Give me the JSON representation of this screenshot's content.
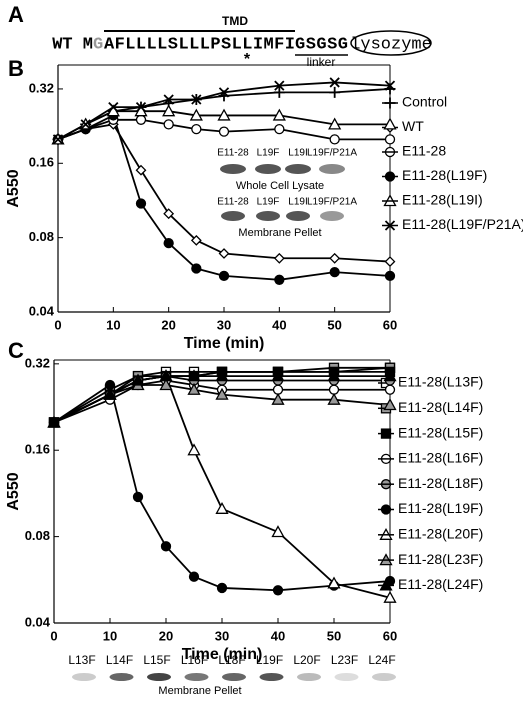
{
  "panel_a": {
    "label": "A",
    "prefix": "WT M",
    "g": "G",
    "tmd_seq": "AFLLLLSLLLPSLLIMFI",
    "linker_seq": "GSGSG",
    "tmd": "TMD",
    "star": "*",
    "linker": "linker",
    "lysozyme": "lysozyme"
  },
  "chart_data": [
    {
      "type": "line",
      "panel_label": "B",
      "xlabel": "Time (min)",
      "ylabel": "A550",
      "log_y": true,
      "x": [
        0,
        5,
        10,
        15,
        20,
        25,
        30,
        40,
        50,
        60
      ],
      "xlim": [
        0,
        60
      ],
      "xticks": [
        0,
        10,
        20,
        30,
        40,
        50,
        60
      ],
      "ylim": [
        0.04,
        0.4
      ],
      "yticks": [
        0.04,
        0.08,
        0.16,
        0.32
      ],
      "series": [
        {
          "name": "Control",
          "color": "#000000",
          "marker": "plus",
          "fill": "none",
          "values": [
            0.2,
            0.23,
            0.26,
            0.27,
            0.28,
            0.29,
            0.3,
            0.31,
            0.31,
            0.32
          ]
        },
        {
          "name": "WT",
          "color": "#000000",
          "marker": "diamond",
          "fill": "#ffffff",
          "values": [
            0.2,
            0.22,
            0.23,
            0.15,
            0.1,
            0.078,
            0.069,
            0.066,
            0.066,
            0.064
          ]
        },
        {
          "name": "E11-28",
          "color": "#000000",
          "marker": "circle",
          "fill": "#ffffff",
          "values": [
            0.2,
            0.22,
            0.24,
            0.24,
            0.23,
            0.22,
            0.215,
            0.22,
            0.2,
            0.2
          ]
        },
        {
          "name": "E11-28(L19F)",
          "color": "#000000",
          "marker": "circle",
          "fill": "#000000",
          "values": [
            0.2,
            0.22,
            0.25,
            0.11,
            0.076,
            0.06,
            0.056,
            0.054,
            0.058,
            0.056
          ]
        },
        {
          "name": "E11-28(L19I)",
          "color": "#000000",
          "marker": "triangle",
          "fill": "#ffffff",
          "values": [
            0.2,
            0.23,
            0.26,
            0.26,
            0.26,
            0.25,
            0.25,
            0.25,
            0.23,
            0.23
          ]
        },
        {
          "name": "E11-28(L19F/P21A)",
          "color": "#000000",
          "marker": "cross",
          "fill": "none",
          "values": [
            0.2,
            0.23,
            0.27,
            0.27,
            0.29,
            0.29,
            0.31,
            0.33,
            0.34,
            0.33
          ]
        }
      ],
      "blot": {
        "lanes": [
          "E11-28",
          "L19F",
          "L19I",
          "L19F/P21A"
        ],
        "lanes_2": [
          "E11-28",
          "L19F",
          "L19I",
          "L19F/P21A"
        ],
        "caption_1": "Whole Cell Lysate",
        "caption_2": "Membrane Pellet"
      }
    },
    {
      "type": "line",
      "panel_label": "C",
      "xlabel": "Time (min)",
      "ylabel": "A550",
      "log_y": true,
      "x": [
        0,
        10,
        15,
        20,
        25,
        30,
        40,
        50,
        60
      ],
      "xlim": [
        0,
        60
      ],
      "xticks": [
        0,
        10,
        20,
        30,
        40,
        50,
        60
      ],
      "ylim": [
        0.04,
        0.33
      ],
      "yticks": [
        0.04,
        0.08,
        0.16,
        0.32
      ],
      "series": [
        {
          "name": "E11-28(L13F)",
          "color": "#000000",
          "marker": "square",
          "fill": "#ffffff",
          "values": [
            0.2,
            0.26,
            0.29,
            0.3,
            0.3,
            0.3,
            0.3,
            0.3,
            0.31
          ]
        },
        {
          "name": "E11-28(L14F)",
          "color": "#000000",
          "marker": "square",
          "fill": "#999999",
          "values": [
            0.2,
            0.25,
            0.29,
            0.29,
            0.29,
            0.3,
            0.3,
            0.31,
            0.31
          ]
        },
        {
          "name": "E11-28(L15F)",
          "color": "#000000",
          "marker": "square",
          "fill": "#000000",
          "values": [
            0.2,
            0.25,
            0.28,
            0.29,
            0.29,
            0.3,
            0.3,
            0.3,
            0.3
          ]
        },
        {
          "name": "E11-28(L16F)",
          "color": "#000000",
          "marker": "circle",
          "fill": "#ffffff",
          "values": [
            0.2,
            0.24,
            0.27,
            0.28,
            0.27,
            0.26,
            0.26,
            0.26,
            0.26
          ]
        },
        {
          "name": "E11-28(L18F)",
          "color": "#000000",
          "marker": "circle",
          "fill": "#999999",
          "values": [
            0.2,
            0.25,
            0.28,
            0.29,
            0.28,
            0.28,
            0.28,
            0.28,
            0.28
          ]
        },
        {
          "name": "E11-28(L19F)",
          "color": "#000000",
          "marker": "circle",
          "fill": "#000000",
          "values": [
            0.2,
            0.27,
            0.11,
            0.074,
            0.058,
            0.053,
            0.052,
            0.054,
            0.056
          ]
        },
        {
          "name": "E11-28(L20F)",
          "color": "#000000",
          "marker": "triangle",
          "fill": "#ffffff",
          "values": [
            0.2,
            0.25,
            0.28,
            0.29,
            0.16,
            0.1,
            0.083,
            0.055,
            0.049
          ]
        },
        {
          "name": "E11-28(L23F)",
          "color": "#000000",
          "marker": "triangle",
          "fill": "#999999",
          "values": [
            0.2,
            0.25,
            0.27,
            0.27,
            0.26,
            0.25,
            0.24,
            0.24,
            0.23
          ]
        },
        {
          "name": "E11-28(L24F)",
          "color": "#000000",
          "marker": "triangle",
          "fill": "#000000",
          "values": [
            0.2,
            0.25,
            0.28,
            0.29,
            0.29,
            0.29,
            0.29,
            0.29,
            0.29
          ]
        }
      ],
      "blot": {
        "lanes": [
          "L13F",
          "L14F",
          "L15F",
          "L16F",
          "L18F",
          "L19F",
          "L20F",
          "L23F",
          "L24F"
        ],
        "caption": "Membrane Pellet"
      }
    }
  ]
}
